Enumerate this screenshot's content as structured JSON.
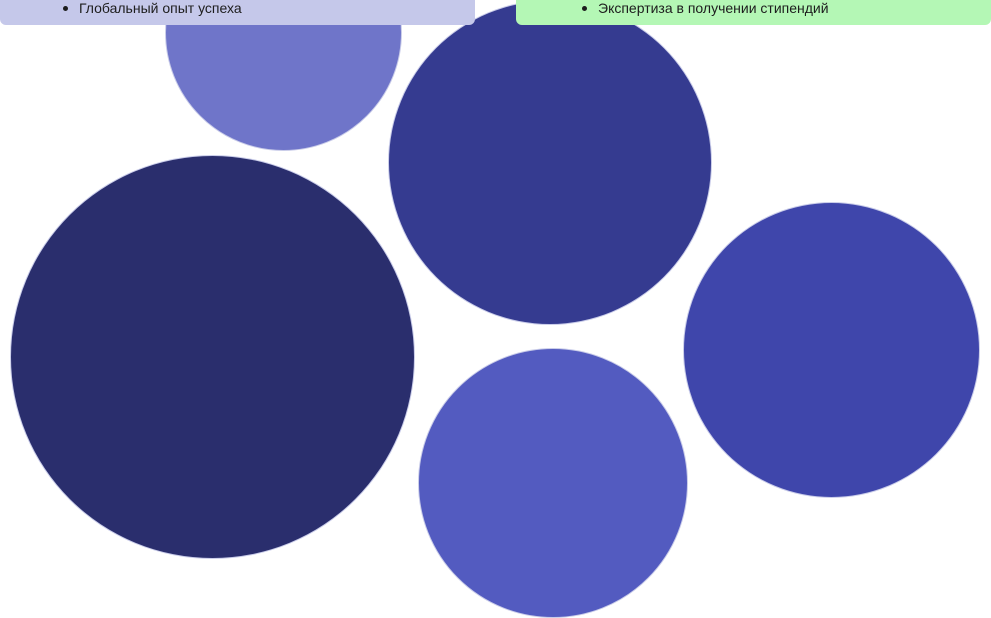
{
  "cards": {
    "left": {
      "items": [
        "Глобальный опыт успеха"
      ]
    },
    "right": {
      "items": [
        "Экспертиза в получении стипендий"
      ]
    }
  },
  "colors": {
    "left_card_bg": "#c5c8ea",
    "right_card_bg": "#b4f7b5",
    "bubble_palette": [
      "#6f75c9",
      "#353b90",
      "#2a2e6d",
      "#3f46ab",
      "#535bc0"
    ]
  }
}
